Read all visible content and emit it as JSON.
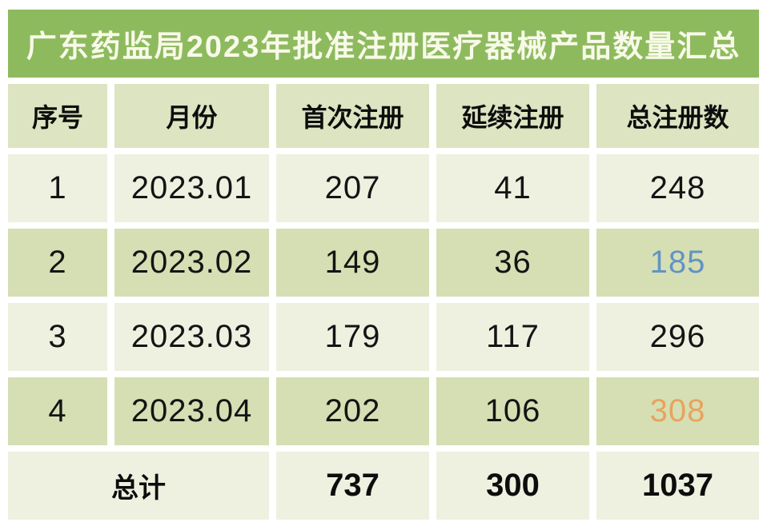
{
  "chart_data": {
    "type": "table",
    "title": "广东药监局2023年批准注册医疗器械产品数量汇总",
    "columns": [
      "序号",
      "月份",
      "首次注册",
      "延续注册",
      "总注册数"
    ],
    "rows": [
      [
        "1",
        "2023.01",
        "207",
        "41",
        "248"
      ],
      [
        "2",
        "2023.02",
        "149",
        "36",
        "185"
      ],
      [
        "3",
        "2023.03",
        "179",
        "117",
        "296"
      ],
      [
        "4",
        "2023.04",
        "202",
        "106",
        "308"
      ]
    ],
    "footer": [
      "总计",
      "737",
      "300",
      "1037"
    ],
    "highlights": [
      {
        "value": "185",
        "row": "2023.02",
        "column": "总注册数",
        "color": "#6293c4"
      },
      {
        "value": "308",
        "row": "2023.04",
        "column": "总注册数",
        "color": "#e8a35e"
      }
    ]
  },
  "colors": {
    "title_bg": "#8eba5e",
    "title_text": "#f8fae9",
    "header_bg": "#dce4c1",
    "row_light_bg": "#eef1e0",
    "row_dark_bg": "#d5dfb3",
    "text": "#141414",
    "highlight_blue": "#6293c4",
    "highlight_orange": "#e8a35e"
  }
}
